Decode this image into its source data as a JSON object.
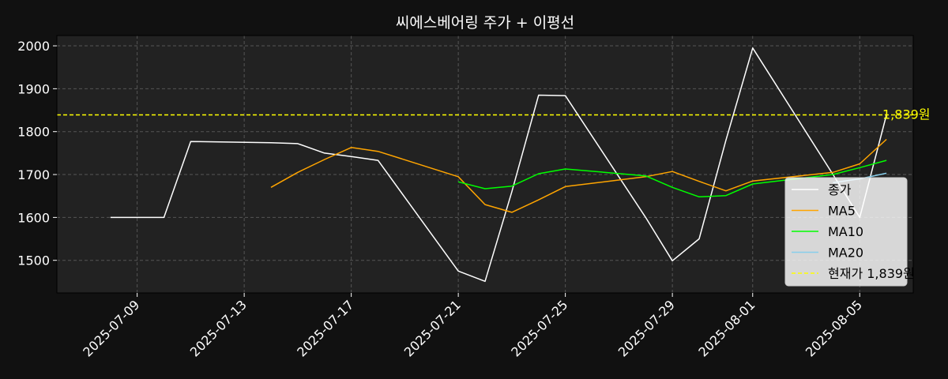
{
  "chart_data": {
    "type": "line",
    "title": "씨에스베어링 주가 + 이평선",
    "xlabel": "",
    "ylabel": "",
    "xlim": [
      "2025-07-06",
      "2025-08-07"
    ],
    "ylim": [
      1424,
      2024
    ],
    "x_ticks": [
      "2025-07-09",
      "2025-07-13",
      "2025-07-17",
      "2025-07-21",
      "2025-07-25",
      "2025-07-29",
      "2025-08-01",
      "2025-08-05"
    ],
    "y_ticks": [
      1500,
      1600,
      1700,
      1800,
      1900,
      2000
    ],
    "grid": true,
    "legend_position": "lower-right",
    "background": "#111111",
    "plot_background": "#222222",
    "current_price": {
      "value": 1839,
      "label": "1,839원",
      "legend_label": "현재가 1,839원",
      "color": "#ffff00"
    },
    "series": [
      {
        "name": "종가",
        "color": "#ffffff",
        "points": [
          [
            "2025-07-08",
            1600
          ],
          [
            "2025-07-09",
            1600
          ],
          [
            "2025-07-10",
            1600
          ],
          [
            "2025-07-11",
            1777
          ],
          [
            "2025-07-14",
            1774
          ],
          [
            "2025-07-15",
            1772
          ],
          [
            "2025-07-16",
            1750
          ],
          [
            "2025-07-17",
            1742
          ],
          [
            "2025-07-18",
            1733
          ],
          [
            "2025-07-21",
            1475
          ],
          [
            "2025-07-22",
            1451
          ],
          [
            "2025-07-23",
            1660
          ],
          [
            "2025-07-24",
            1885
          ],
          [
            "2025-07-25",
            1884
          ],
          [
            "2025-07-28",
            1600
          ],
          [
            "2025-07-29",
            1499
          ],
          [
            "2025-07-30",
            1550
          ],
          [
            "2025-07-31",
            1780
          ],
          [
            "2025-08-01",
            1995
          ],
          [
            "2025-08-04",
            1700
          ],
          [
            "2025-08-05",
            1600
          ],
          [
            "2025-08-06",
            1839
          ]
        ]
      },
      {
        "name": "MA5",
        "color": "#ffa500",
        "points": [
          [
            "2025-07-14",
            1670
          ],
          [
            "2025-07-15",
            1705
          ],
          [
            "2025-07-16",
            1735
          ],
          [
            "2025-07-17",
            1763
          ],
          [
            "2025-07-18",
            1754
          ],
          [
            "2025-07-21",
            1695
          ],
          [
            "2025-07-22",
            1630
          ],
          [
            "2025-07-23",
            1612
          ],
          [
            "2025-07-24",
            1641
          ],
          [
            "2025-07-25",
            1672
          ],
          [
            "2025-07-28",
            1695
          ],
          [
            "2025-07-29",
            1707
          ],
          [
            "2025-07-30",
            1684
          ],
          [
            "2025-07-31",
            1662
          ],
          [
            "2025-08-01",
            1685
          ],
          [
            "2025-08-04",
            1705
          ],
          [
            "2025-08-05",
            1725
          ],
          [
            "2025-08-06",
            1782
          ]
        ]
      },
      {
        "name": "MA10",
        "color": "#00ff00",
        "points": [
          [
            "2025-07-21",
            1683
          ],
          [
            "2025-07-22",
            1667
          ],
          [
            "2025-07-23",
            1673
          ],
          [
            "2025-07-24",
            1702
          ],
          [
            "2025-07-25",
            1713
          ],
          [
            "2025-07-28",
            1697
          ],
          [
            "2025-07-29",
            1670
          ],
          [
            "2025-07-30",
            1648
          ],
          [
            "2025-07-31",
            1651
          ],
          [
            "2025-08-01",
            1678
          ],
          [
            "2025-08-04",
            1700
          ],
          [
            "2025-08-05",
            1716
          ],
          [
            "2025-08-06",
            1733
          ]
        ]
      },
      {
        "name": "MA20",
        "color": "#87ceeb",
        "points": [
          [
            "2025-08-04",
            1681
          ],
          [
            "2025-08-05",
            1690
          ],
          [
            "2025-08-06",
            1703
          ]
        ]
      }
    ]
  }
}
